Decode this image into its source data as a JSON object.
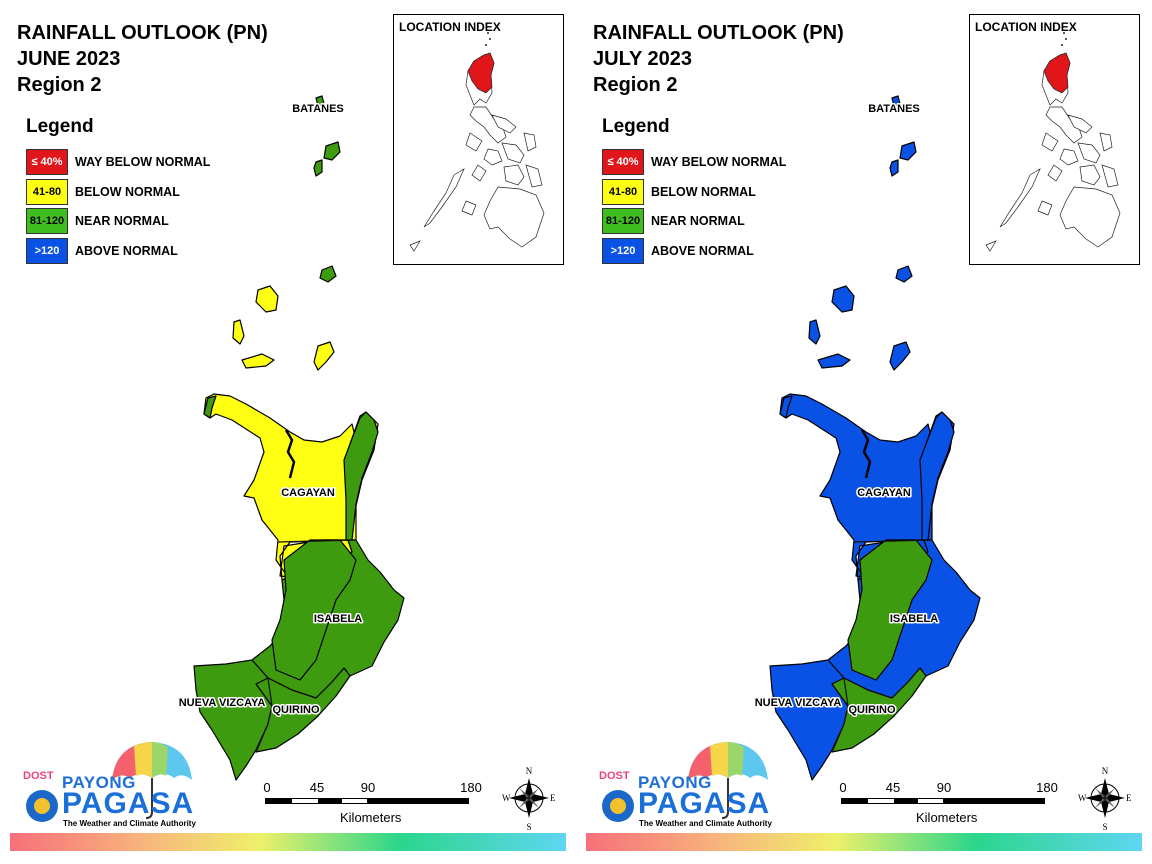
{
  "panels": [
    {
      "title": {
        "line1": "RAINFALL OUTLOOK (PN)",
        "line2": "JUNE 2023",
        "line3": "Region 2"
      },
      "colors": {
        "batanes": "#3e9b0f",
        "islands_north": "#3e9b0f",
        "islands_south": "#ffff13",
        "cagayan_main": "#ffff13",
        "cagayan_east": "#3e9b0f",
        "isabela": "#3e9b0f",
        "isabela_inner": "#3e9b0f",
        "nueva_vizcaya": "#3e9b0f",
        "quirino": "#3e9b0f"
      }
    },
    {
      "title": {
        "line1": "RAINFALL OUTLOOK (PN)",
        "line2": "JULY 2023",
        "line3": "Region 2"
      },
      "colors": {
        "batanes": "#0a52e6",
        "islands_north": "#0a52e6",
        "islands_south": "#0a52e6",
        "cagayan_main": "#0a52e6",
        "cagayan_east": "#0a52e6",
        "isabela": "#0a52e6",
        "isabela_inner": "#3e9b0f",
        "nueva_vizcaya": "#0a52e6",
        "quirino": "#3e9b0f"
      }
    }
  ],
  "legend": {
    "title": "Legend",
    "items": [
      {
        "code": "≤ 40%",
        "label": "WAY BELOW NORMAL",
        "color": "#e0161b",
        "text_color": "#ffffff"
      },
      {
        "code": "41-80",
        "label": "BELOW NORMAL",
        "color": "#ffff13",
        "text_color": "#000000"
      },
      {
        "code": "81-120",
        "label": "NEAR NORMAL",
        "color": "#3fbf1f",
        "text_color": "#000000"
      },
      {
        "code": ">120",
        "label": "ABOVE NORMAL",
        "color": "#0a52e6",
        "text_color": "#ffffff"
      }
    ]
  },
  "location_index": {
    "title": "LOCATION INDEX",
    "highlight_color": "#e0161b"
  },
  "places": {
    "batanes": "BATANES",
    "cagayan": "CAGAYAN",
    "isabela": "ISABELA",
    "nueva_vizcaya": "NUEVA VIZCAYA",
    "quirino": "QUIRINO"
  },
  "scale": {
    "ticks": [
      "0",
      "45",
      "90",
      "180"
    ],
    "unit": "Kilometers"
  },
  "compass": {
    "n": "N",
    "s": "S",
    "e": "E",
    "w": "W"
  },
  "logo": {
    "dost": "DOST",
    "payong": "PAYONG",
    "pagasa": "PAGASA",
    "tagline": "The Weather and Climate Authority"
  }
}
